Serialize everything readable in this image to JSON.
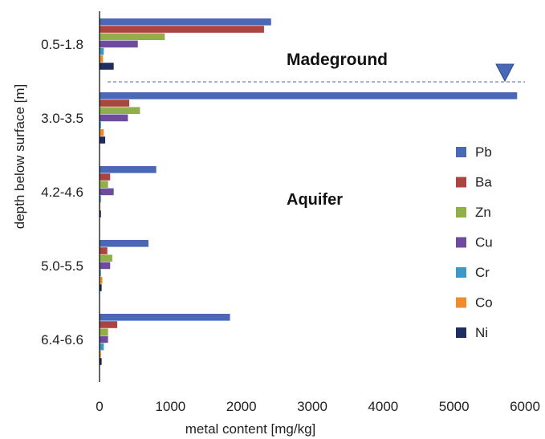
{
  "chart_data": {
    "type": "bar",
    "orientation": "horizontal",
    "xlabel": "metal content [mg/kg]",
    "ylabel": "depth below surface [m]",
    "xlim": [
      0,
      6000
    ],
    "xticks": [
      0,
      1000,
      2000,
      3000,
      4000,
      5000,
      6000
    ],
    "grid": false,
    "legend_position": "right",
    "categories": [
      "0.5-1.8",
      "3.0-3.5",
      "4.2-4.6",
      "5.0-5.5",
      "6.4-6.6"
    ],
    "series": [
      {
        "name": "Pb",
        "color": "#4A68B6",
        "values": [
          2420,
          5890,
          800,
          690,
          1840
        ]
      },
      {
        "name": "Ba",
        "color": "#AC4442",
        "values": [
          2320,
          420,
          150,
          110,
          250
        ]
      },
      {
        "name": "Zn",
        "color": "#8FB048",
        "values": [
          920,
          570,
          120,
          180,
          120
        ]
      },
      {
        "name": "Cu",
        "color": "#6E4B9E",
        "values": [
          540,
          400,
          200,
          150,
          120
        ]
      },
      {
        "name": "Cr",
        "color": "#3F97C6",
        "values": [
          60,
          20,
          20,
          20,
          60
        ]
      },
      {
        "name": "Co",
        "color": "#F08C2C",
        "values": [
          50,
          60,
          10,
          40,
          20
        ]
      },
      {
        "name": "Ni",
        "color": "#1F2E5E",
        "values": [
          200,
          80,
          20,
          30,
          30
        ]
      }
    ],
    "annotations": {
      "upper_zone": "Madeground",
      "lower_zone": "Aquifer",
      "water_table_marker": "triangle-down",
      "water_table_line_color": "#4A68B6"
    }
  }
}
